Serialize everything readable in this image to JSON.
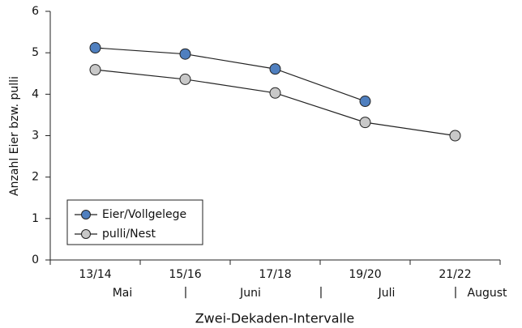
{
  "chart_data": {
    "type": "line",
    "y_label": "Anzahl Eier bzw. pulli",
    "x_label": "Zwei-Dekaden-Intervalle",
    "categories": [
      "13/14",
      "15/16",
      "17/18",
      "19/20",
      "21/22"
    ],
    "months": [
      "Mai",
      "Juni",
      "Juli",
      "August"
    ],
    "series": [
      {
        "name": "Eier/Vollgelege",
        "color": "#4f7fbf",
        "values": [
          5.12,
          4.97,
          4.61,
          3.83,
          null
        ]
      },
      {
        "name": "pulli/Nest",
        "color": "#c8c8c8",
        "values": [
          4.59,
          4.36,
          4.03,
          3.32,
          3.0
        ]
      }
    ],
    "ylim": [
      0,
      6
    ],
    "yticks": [
      0,
      1,
      2,
      3,
      4,
      5,
      6
    ],
    "legend": "lower-left"
  }
}
